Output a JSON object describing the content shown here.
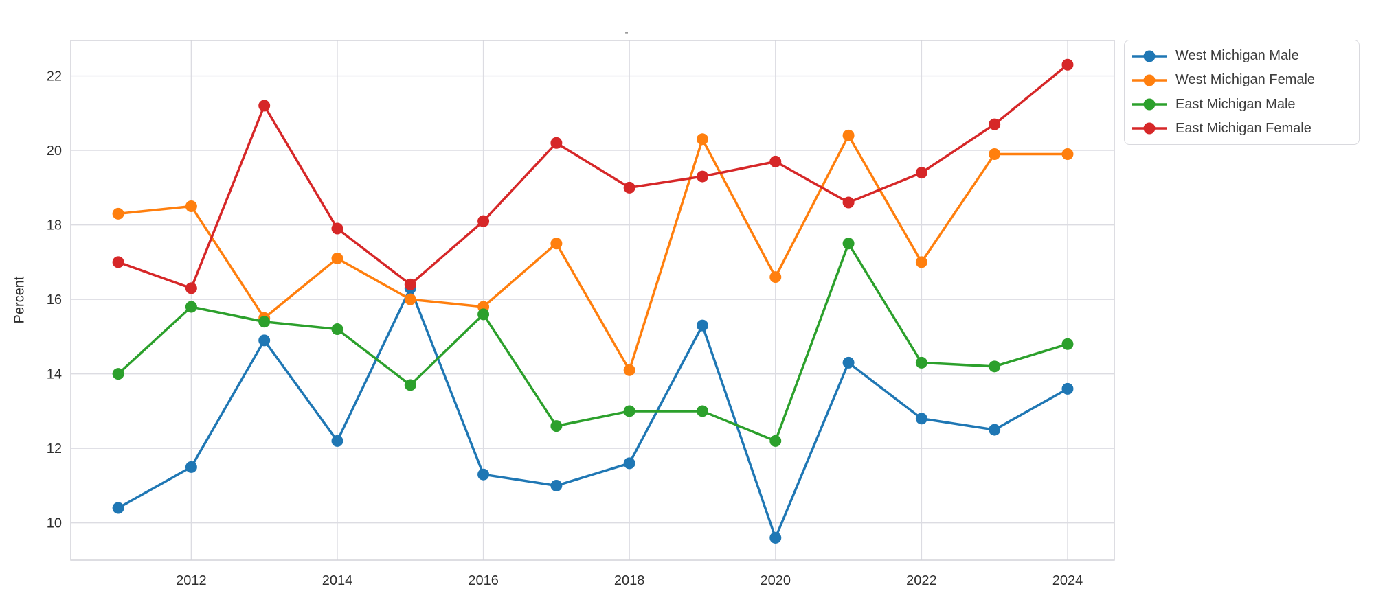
{
  "chart_data": {
    "type": "line",
    "title": "-",
    "xlabel": "",
    "ylabel": "Percent",
    "grid": true,
    "legend_position": "outside-upper-right",
    "x": [
      2011,
      2012,
      2013,
      2014,
      2015,
      2016,
      2017,
      2018,
      2019,
      2020,
      2021,
      2022,
      2023,
      2024
    ],
    "xticks": [
      2012,
      2014,
      2016,
      2018,
      2020,
      2022,
      2024
    ],
    "yticks": [
      10,
      12,
      14,
      16,
      18,
      20,
      22
    ],
    "x_domain": [
      2010.35,
      2024.64
    ],
    "y_domain": [
      9.0,
      22.95
    ],
    "series": [
      {
        "name": "West Michigan Male",
        "color": "#1f77b4",
        "values": [
          10.4,
          11.5,
          14.9,
          12.2,
          16.3,
          11.3,
          11.0,
          11.6,
          15.3,
          9.6,
          14.3,
          12.8,
          12.5,
          13.6
        ]
      },
      {
        "name": "West Michigan Female",
        "color": "#ff7f0e",
        "values": [
          18.3,
          18.5,
          15.5,
          17.1,
          16.0,
          15.8,
          17.5,
          14.1,
          20.3,
          16.6,
          20.4,
          17.0,
          19.9,
          19.9
        ]
      },
      {
        "name": "East Michigan Male",
        "color": "#2ca02c",
        "values": [
          14.0,
          15.8,
          15.4,
          15.2,
          13.7,
          15.6,
          12.6,
          13.0,
          13.0,
          12.2,
          17.5,
          14.3,
          14.2,
          14.8
        ]
      },
      {
        "name": "East Michigan Female",
        "color": "#d62728",
        "values": [
          17.0,
          16.3,
          21.2,
          17.9,
          16.4,
          18.1,
          20.2,
          19.0,
          19.3,
          19.7,
          18.6,
          19.4,
          20.7,
          22.3
        ]
      }
    ]
  }
}
